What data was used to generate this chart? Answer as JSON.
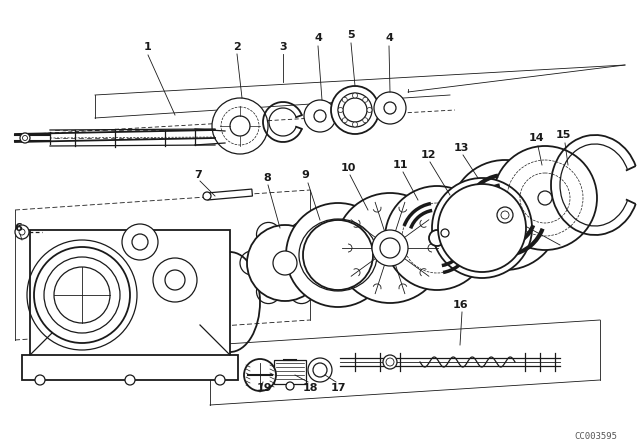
{
  "bg_color": "#ffffff",
  "lc": "#1a1a1a",
  "fig_width": 6.4,
  "fig_height": 4.48,
  "dpi": 100,
  "watermark": "CC003595",
  "label_positions": [
    [
      "1",
      148,
      47
    ],
    [
      "2",
      237,
      47
    ],
    [
      "3",
      283,
      47
    ],
    [
      "4",
      318,
      38
    ],
    [
      "5",
      351,
      35
    ],
    [
      "4",
      389,
      38
    ],
    [
      "6",
      18,
      228
    ],
    [
      "7",
      198,
      175
    ],
    [
      "8",
      267,
      178
    ],
    [
      "9",
      305,
      175
    ],
    [
      "10",
      348,
      168
    ],
    [
      "11",
      400,
      165
    ],
    [
      "12",
      428,
      155
    ],
    [
      "13",
      461,
      148
    ],
    [
      "14",
      536,
      138
    ],
    [
      "15",
      563,
      135
    ],
    [
      "16",
      460,
      305
    ],
    [
      "17",
      338,
      388
    ],
    [
      "18",
      310,
      388
    ],
    [
      "19",
      265,
      388
    ]
  ]
}
